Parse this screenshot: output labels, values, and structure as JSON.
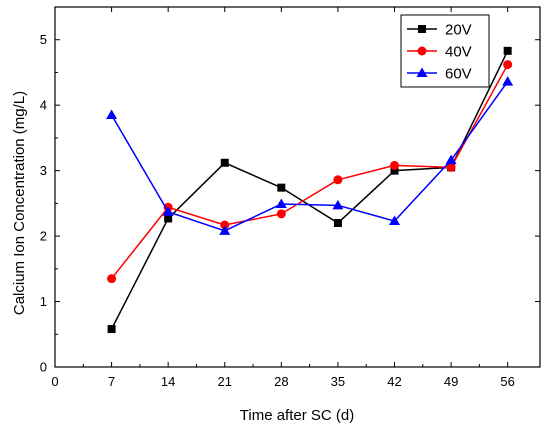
{
  "chart_data": {
    "type": "line",
    "title": "",
    "xlabel": "Time after SC (d)",
    "ylabel": "Calcium Ion Concentration (mg/L)",
    "xlim": [
      0,
      60
    ],
    "ylim": [
      0,
      5.5
    ],
    "x_ticks": [
      0,
      7,
      14,
      21,
      28,
      35,
      42,
      49,
      56
    ],
    "y_ticks": [
      0,
      1,
      2,
      3,
      4,
      5
    ],
    "grid": false,
    "legend_position": "top-right",
    "x": [
      7,
      14,
      21,
      28,
      35,
      42,
      49,
      56
    ],
    "series": [
      {
        "name": "20V",
        "color": "#000000",
        "marker": "square",
        "values": [
          0.58,
          2.27,
          3.12,
          2.74,
          2.2,
          3.0,
          3.05,
          4.83
        ]
      },
      {
        "name": "40V",
        "color": "#ff0000",
        "marker": "circle",
        "values": [
          1.35,
          2.44,
          2.17,
          2.34,
          2.86,
          3.08,
          3.05,
          4.62
        ]
      },
      {
        "name": "60V",
        "color": "#0000ff",
        "marker": "triangle",
        "values": [
          3.85,
          2.37,
          2.08,
          2.49,
          2.47,
          2.23,
          3.16,
          4.36
        ]
      }
    ]
  }
}
